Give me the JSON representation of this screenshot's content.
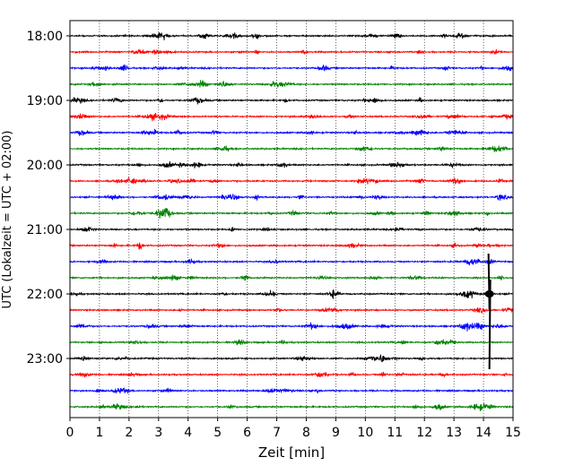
{
  "chart_data": {
    "type": "line",
    "title": "",
    "xlabel": "Zeit  [min]",
    "ylabel": "UTC (Lokalzeit = UTC + 02:00)",
    "x_range": [
      0,
      15
    ],
    "x_ticks": [
      0,
      1,
      2,
      3,
      4,
      5,
      6,
      7,
      8,
      9,
      10,
      11,
      12,
      13,
      14,
      15
    ],
    "y_ticks": [
      "18:00",
      "19:00",
      "20:00",
      "21:00",
      "22:00",
      "23:00"
    ],
    "grid": "vertical dotted at each minute",
    "trace_interval_minutes": 15,
    "traces": [
      {
        "start": "18:00",
        "color": "#000000"
      },
      {
        "start": "18:15",
        "color": "#ff0000"
      },
      {
        "start": "18:30",
        "color": "#0000ff"
      },
      {
        "start": "18:45",
        "color": "#008000"
      },
      {
        "start": "19:00",
        "color": "#000000"
      },
      {
        "start": "19:15",
        "color": "#ff0000"
      },
      {
        "start": "19:30",
        "color": "#0000ff"
      },
      {
        "start": "19:45",
        "color": "#008000"
      },
      {
        "start": "20:00",
        "color": "#000000"
      },
      {
        "start": "20:15",
        "color": "#ff0000"
      },
      {
        "start": "20:30",
        "color": "#0000ff"
      },
      {
        "start": "20:45",
        "color": "#008000"
      },
      {
        "start": "21:00",
        "color": "#000000"
      },
      {
        "start": "21:15",
        "color": "#ff0000"
      },
      {
        "start": "21:30",
        "color": "#0000ff"
      },
      {
        "start": "21:45",
        "color": "#008000"
      },
      {
        "start": "22:00",
        "color": "#000000"
      },
      {
        "start": "22:15",
        "color": "#ff0000"
      },
      {
        "start": "22:30",
        "color": "#0000ff"
      },
      {
        "start": "22:45",
        "color": "#008000"
      },
      {
        "start": "23:00",
        "color": "#000000"
      },
      {
        "start": "23:15",
        "color": "#ff0000"
      },
      {
        "start": "23:30",
        "color": "#0000ff"
      },
      {
        "start": "23:45",
        "color": "#008000"
      }
    ],
    "event": {
      "time": "22:00",
      "minute": 14.2,
      "description_visible": false
    }
  }
}
